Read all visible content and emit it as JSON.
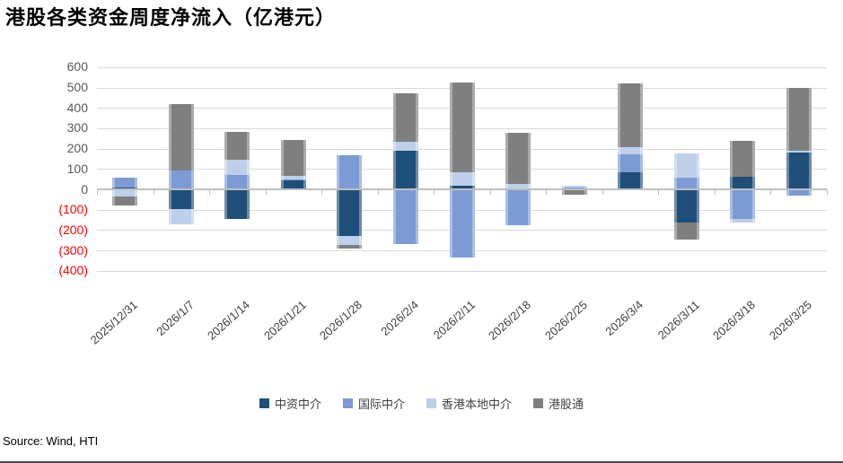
{
  "title": "港股各类资金周度净流入（亿港元）",
  "source": "Source: Wind, HTI",
  "axis": {
    "y_ticks": [
      {
        "label": "600",
        "value": 600
      },
      {
        "label": "500",
        "value": 500
      },
      {
        "label": "400",
        "value": 400
      },
      {
        "label": "300",
        "value": 300
      },
      {
        "label": "200",
        "value": 200
      },
      {
        "label": "100",
        "value": 100
      },
      {
        "label": "0",
        "value": 0
      },
      {
        "label": "(100)",
        "value": -100
      },
      {
        "label": "(200)",
        "value": -200
      },
      {
        "label": "(300)",
        "value": -300
      },
      {
        "label": "(400)",
        "value": -400
      }
    ]
  },
  "chart_data": {
    "type": "bar",
    "stacked": true,
    "title": "港股各类资金周度净流入（亿港元）",
    "ylabel": "亿港元",
    "ylim": [
      -400,
      600
    ],
    "ytick_interval": 100,
    "grid": true,
    "legend_position": "bottom",
    "negative_tick_style": "red parentheses",
    "categories": [
      "2025/12/31",
      "2026/1/7",
      "2026/1/14",
      "2026/1/21",
      "2026/1/28",
      "2026/2/4",
      "2026/2/11",
      "2026/2/18",
      "2026/2/25",
      "2026/3/4",
      "2026/3/11",
      "2026/3/18",
      "2026/3/25"
    ],
    "series": [
      {
        "name": "中资中介",
        "color": "#1F4E79",
        "values": [
          8,
          -97,
          -146,
          45,
          -230,
          191,
          19,
          0,
          -5,
          85,
          -165,
          63,
          180
        ]
      },
      {
        "name": "国际中介",
        "color": "#7C9BD4",
        "values": [
          48,
          93,
          69,
          5,
          166,
          -270,
          -335,
          -175,
          8,
          88,
          56,
          -145,
          -30
        ]
      },
      {
        "name": "香港本地中介",
        "color": "#BDCFE9",
        "values": [
          -35,
          -75,
          78,
          17,
          -45,
          41,
          66,
          26,
          10,
          34,
          120,
          -20,
          10
        ]
      },
      {
        "name": "港股通",
        "color": "#7F7F7F",
        "values": [
          -45,
          327,
          137,
          176,
          -15,
          238,
          441,
          250,
          -20,
          312,
          -80,
          174,
          310
        ]
      }
    ]
  }
}
